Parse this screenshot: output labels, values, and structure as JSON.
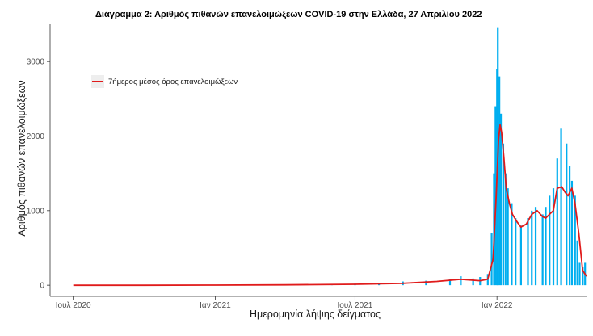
{
  "chart_data": {
    "type": "bar",
    "title": "Διάγραμμα 2: Αριθμός πιθανών επανελοιμώξεων COVID-19 στην Ελλάδα, 27 Απριλίου 2022",
    "xlabel": "Ημερομηνία λήψης δείγματος",
    "ylabel": "Αριθμός πιθανών επανελοιμώξεων",
    "x_range": [
      "2020-06-01",
      "2022-04-27"
    ],
    "ylim": [
      -150,
      3500
    ],
    "x_ticks": [
      {
        "date": "2020-07-01",
        "label": "Ιουλ 2020"
      },
      {
        "date": "2021-01-01",
        "label": "Ιαν 2021"
      },
      {
        "date": "2021-07-01",
        "label": "Ιουλ 2021"
      },
      {
        "date": "2022-01-01",
        "label": "Ιαν 2022"
      }
    ],
    "y_ticks": [
      0,
      1000,
      2000,
      3000
    ],
    "grid": false,
    "legend": {
      "position": "top-left",
      "entries": [
        "7ήμερος μέσος όρος επανελοιμώξεων"
      ]
    },
    "series": [
      {
        "type": "bar",
        "color": "#00aeef",
        "x": [
          "2021-06-01",
          "2021-07-01",
          "2021-08-01",
          "2021-09-01",
          "2021-10-01",
          "2021-11-01",
          "2021-11-15",
          "2021-12-01",
          "2021-12-10",
          "2021-12-20",
          "2021-12-25",
          "2021-12-28",
          "2021-12-30",
          "2022-01-01",
          "2022-01-02",
          "2022-01-04",
          "2022-01-06",
          "2022-01-09",
          "2022-01-12",
          "2022-01-15",
          "2022-01-20",
          "2022-01-25",
          "2022-02-01",
          "2022-02-10",
          "2022-02-15",
          "2022-02-20",
          "2022-03-01",
          "2022-03-05",
          "2022-03-10",
          "2022-03-15",
          "2022-03-20",
          "2022-03-25",
          "2022-04-01",
          "2022-04-05",
          "2022-04-08",
          "2022-04-12",
          "2022-04-15",
          "2022-04-18",
          "2022-04-22",
          "2022-04-25"
        ],
        "values": [
          10,
          20,
          30,
          50,
          60,
          80,
          120,
          90,
          110,
          150,
          700,
          1500,
          2400,
          2900,
          3450,
          2800,
          2300,
          1900,
          1500,
          1300,
          1100,
          900,
          800,
          900,
          1000,
          1050,
          950,
          1050,
          1200,
          1300,
          1700,
          2100,
          1900,
          1600,
          1400,
          1200,
          600,
          300,
          250,
          300
        ]
      },
      {
        "name": "7ήμερος μέσος όρος επανελοιμώξεων",
        "type": "line",
        "color": "#e01b1b",
        "x": [
          "2020-07-01",
          "2020-10-01",
          "2021-01-01",
          "2021-04-01",
          "2021-07-01",
          "2021-09-01",
          "2021-10-15",
          "2021-11-15",
          "2021-12-10",
          "2021-12-20",
          "2021-12-27",
          "2021-12-31",
          "2022-01-03",
          "2022-01-05",
          "2022-01-07",
          "2022-01-10",
          "2022-01-13",
          "2022-01-17",
          "2022-01-21",
          "2022-01-27",
          "2022-02-01",
          "2022-02-08",
          "2022-02-15",
          "2022-02-22",
          "2022-03-01",
          "2022-03-05",
          "2022-03-10",
          "2022-03-15",
          "2022-03-20",
          "2022-03-26",
          "2022-03-30",
          "2022-04-03",
          "2022-04-08",
          "2022-04-12",
          "2022-04-17",
          "2022-04-22",
          "2022-04-27"
        ],
        "values": [
          0,
          0,
          2,
          5,
          12,
          25,
          50,
          80,
          60,
          80,
          350,
          1200,
          1950,
          2150,
          2050,
          1700,
          1300,
          1100,
          950,
          850,
          780,
          820,
          950,
          1000,
          920,
          900,
          950,
          1000,
          1300,
          1320,
          1250,
          1200,
          1300,
          1100,
          700,
          200,
          120
        ]
      }
    ]
  }
}
